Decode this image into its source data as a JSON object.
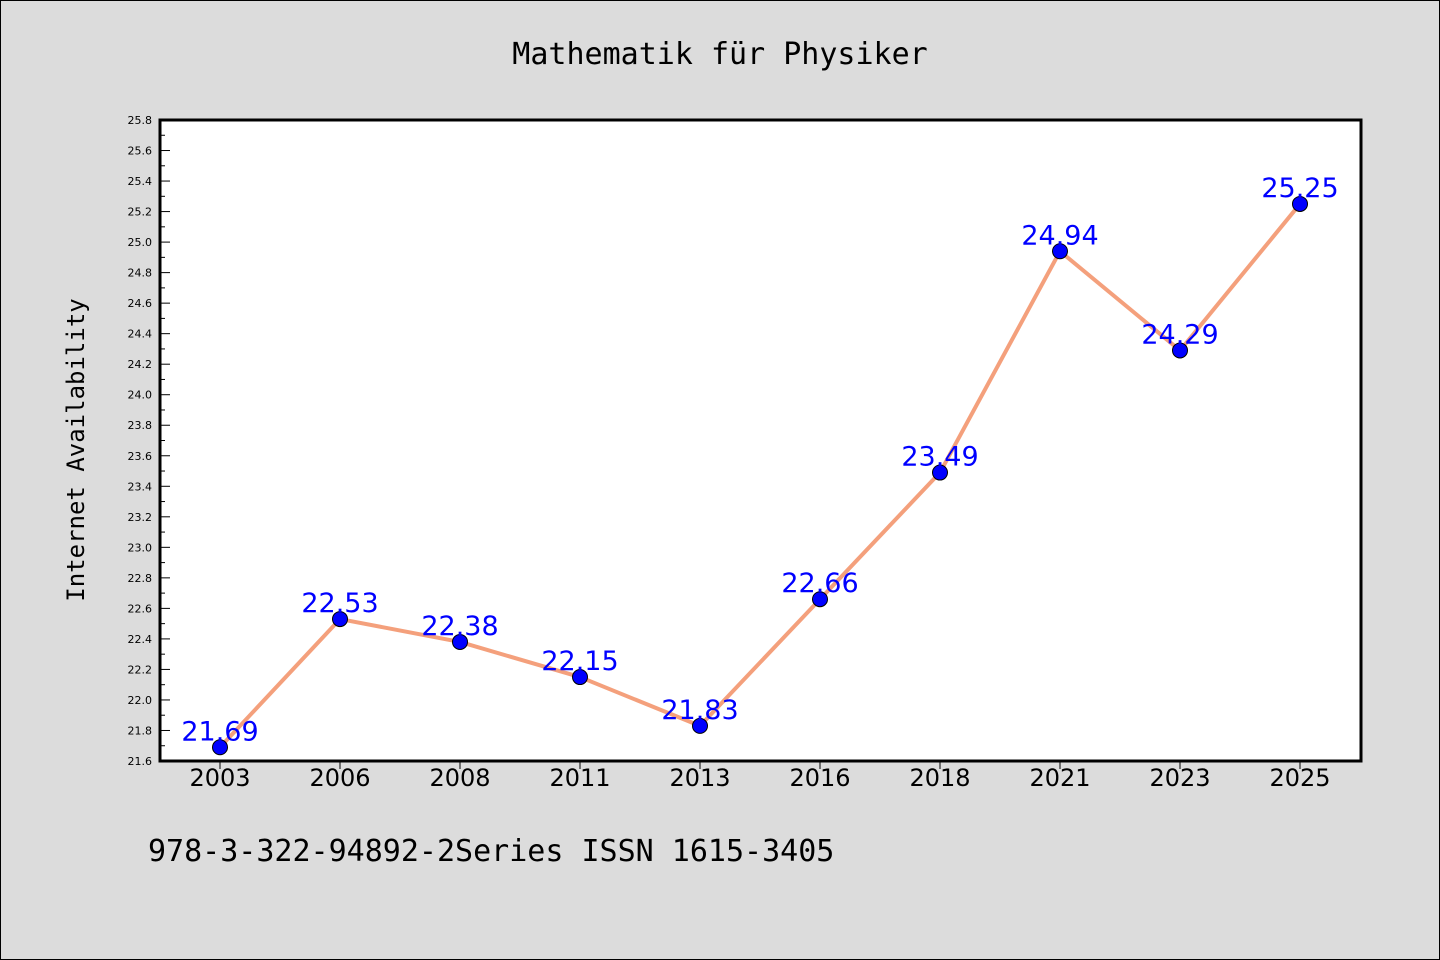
{
  "footer": {
    "text": "978-3-322-94892-2Series ISSN 1615-3405"
  },
  "chart_data": {
    "type": "line",
    "title": "Mathematik für Physiker",
    "xlabel": "",
    "ylabel": "Internet Availability",
    "categories": [
      "2003",
      "2006",
      "2008",
      "2011",
      "2013",
      "2016",
      "2018",
      "2021",
      "2023",
      "2025"
    ],
    "series": [
      {
        "values": [
          21.69,
          22.53,
          22.38,
          22.15,
          21.83,
          22.66,
          23.49,
          24.94,
          24.29,
          25.25
        ]
      }
    ],
    "data_labels": [
      "21.69",
      "22.53",
      "22.38",
      "22.15",
      "21.83",
      "22.66",
      "23.49",
      "24.94",
      "24.29",
      "25.25"
    ],
    "ylim": [
      21.6,
      25.8
    ],
    "yticks": [
      "21.6",
      "21.8",
      "22.0",
      "22.2",
      "22.4",
      "22.6",
      "22.8",
      "23.0",
      "23.2",
      "23.4",
      "23.6",
      "23.8",
      "24.0",
      "24.2",
      "24.4",
      "24.6",
      "24.8",
      "25.0",
      "25.2",
      "25.4",
      "25.6",
      "25.8"
    ],
    "grid": false,
    "legend": "none",
    "colors": {
      "line": "#f4a07c",
      "marker_fill": "#0000ff",
      "marker_edge": "#000000",
      "data_label": "#0000ff",
      "background": "#dcdcdc",
      "plot_background": "#ffffff"
    }
  }
}
